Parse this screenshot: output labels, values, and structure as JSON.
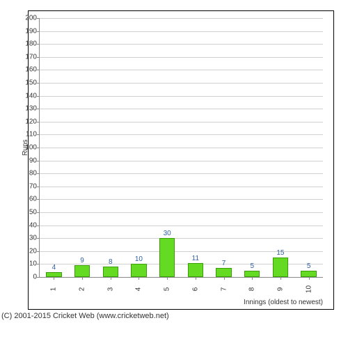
{
  "chart": {
    "type": "bar",
    "ylabel": "Runs",
    "xlabel": "Innings (oldest to newest)",
    "ylim": [
      0,
      200
    ],
    "ytick_step": 10,
    "categories": [
      "1",
      "2",
      "3",
      "4",
      "5",
      "6",
      "7",
      "8",
      "9",
      "10"
    ],
    "values": [
      4,
      9,
      8,
      10,
      30,
      11,
      7,
      5,
      15,
      5
    ],
    "bar_color": "#65da23",
    "bar_border_color": "#399e07",
    "bar_width_ratio": 0.55,
    "value_label_color": "#2e5fa4",
    "grid_color": "#d0d0d0",
    "axis_color": "#888888",
    "background_color": "#ffffff",
    "label_fontsize": 10
  },
  "copyright": "(C) 2001-2015 Cricket Web (www.cricketweb.net)"
}
